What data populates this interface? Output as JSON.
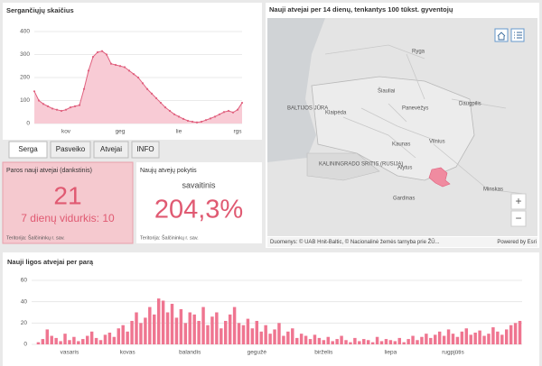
{
  "chart_data": [
    {
      "type": "area",
      "title": "Sergančiųjų skaičius",
      "categories": [
        null,
        null,
        null,
        null,
        null,
        null,
        null,
        "kov",
        null,
        null,
        null,
        null,
        null,
        null,
        null,
        null,
        null,
        null,
        null,
        "geg",
        null,
        null,
        null,
        null,
        null,
        null,
        null,
        null,
        null,
        null,
        null,
        null,
        "lie",
        null,
        null,
        null,
        null,
        null,
        null,
        null,
        null,
        null,
        null,
        null,
        null,
        "rgs",
        null
      ],
      "values": [
        140,
        100,
        85,
        75,
        65,
        60,
        55,
        60,
        70,
        75,
        80,
        150,
        230,
        290,
        310,
        315,
        300,
        260,
        255,
        250,
        245,
        230,
        215,
        200,
        175,
        150,
        130,
        110,
        90,
        70,
        55,
        40,
        30,
        20,
        12,
        8,
        5,
        8,
        15,
        22,
        30,
        40,
        50,
        55,
        48,
        60,
        90
      ],
      "color": "#e0607e",
      "fill": "#f8cbd5",
      "ylim": [
        0,
        400
      ],
      "yticks": [
        0,
        100,
        200,
        300,
        400
      ],
      "grid": true
    },
    {
      "type": "bar",
      "title": "Nauji ligos atvejai per parą",
      "categories": [
        null,
        null,
        null,
        null,
        null,
        null,
        null,
        null,
        "vasaris",
        null,
        null,
        null,
        null,
        null,
        null,
        null,
        null,
        null,
        null,
        null,
        null,
        "kovas",
        null,
        null,
        null,
        null,
        null,
        null,
        null,
        null,
        null,
        null,
        null,
        null,
        null,
        "balandis",
        null,
        null,
        null,
        null,
        null,
        null,
        null,
        null,
        null,
        null,
        null,
        null,
        null,
        null,
        "gegužė",
        null,
        null,
        null,
        null,
        null,
        null,
        null,
        null,
        null,
        null,
        null,
        null,
        null,
        null,
        "birželis",
        null,
        null,
        null,
        null,
        null,
        null,
        null,
        null,
        null,
        null,
        null,
        null,
        null,
        null,
        "liepa",
        null,
        null,
        null,
        null,
        null,
        null,
        null,
        null,
        null,
        null,
        null,
        null,
        null,
        "rugpjūtis",
        null,
        null,
        null,
        null,
        null,
        null,
        null,
        null,
        null,
        null,
        null,
        null,
        null,
        null,
        null
      ],
      "values": [
        0,
        2,
        5,
        14,
        8,
        6,
        3,
        10,
        4,
        7,
        3,
        5,
        8,
        12,
        6,
        4,
        9,
        11,
        7,
        15,
        18,
        12,
        22,
        30,
        20,
        25,
        35,
        28,
        43,
        41,
        30,
        38,
        25,
        33,
        20,
        30,
        28,
        22,
        35,
        18,
        26,
        30,
        15,
        22,
        28,
        35,
        20,
        18,
        24,
        15,
        22,
        12,
        18,
        10,
        14,
        20,
        8,
        12,
        15,
        6,
        10,
        8,
        5,
        9,
        6,
        4,
        7,
        3,
        5,
        8,
        4,
        2,
        6,
        3,
        5,
        4,
        2,
        7,
        3,
        5,
        4,
        3,
        6,
        2,
        5,
        8,
        4,
        7,
        10,
        6,
        9,
        12,
        8,
        14,
        10,
        7,
        12,
        15,
        9,
        11,
        13,
        8,
        10,
        16,
        12,
        9,
        14,
        18,
        20,
        22
      ],
      "color": "#ef7590",
      "ylim": [
        0,
        60
      ],
      "yticks": [
        0,
        20,
        40,
        60
      ],
      "grid": true
    }
  ],
  "tabs": [
    "Serga",
    "Pasveiko",
    "Atvejai",
    "INFO"
  ],
  "daily_card": {
    "title": "Paros nauji atvejai (dankstinis)",
    "value": "21",
    "average": "7 dienų vidurkis: 10",
    "territory": "Teritorija: Šalčininkų r. sav."
  },
  "change_card": {
    "title": "Naujų atvejų pokytis",
    "period": "savaitinis",
    "value": "204,3%",
    "territory": "Teritorija: Šalčininkų r. sav."
  },
  "map": {
    "title": "Nauji atvejai per 14 dienų, tenkantys 100 tūkst. gyventojų",
    "labels": [
      "Ryga",
      "BALTIJOS JŪRA",
      "Šiauliai",
      "Panevėžys",
      "Daugpilis",
      "Klaipėda",
      "Kaunas",
      "Vilnius",
      "KALININGRADO SRITIS (RUSIJA)",
      "Alytus",
      "Gardinas",
      "Minskas"
    ],
    "attribution": "Duomenys: © UAB Hnit-Baltic, © Nacionalinė žemės tarnyba prie ŽŪ...",
    "powered": "Powered by Esri",
    "zoom_in": "+",
    "zoom_out": "−"
  }
}
